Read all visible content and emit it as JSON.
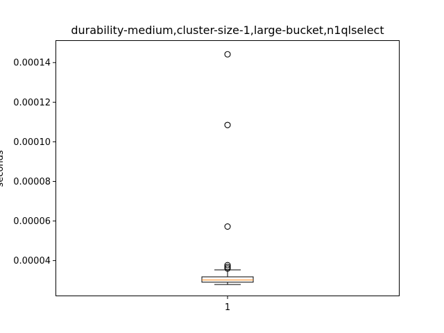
{
  "chart_data": {
    "type": "box",
    "title": "durability-medium,cluster-size-1,large-bucket,n1qlselect",
    "xlabel": "",
    "ylabel": "seconds",
    "categories": [
      "1"
    ],
    "ylim": [
      2.2e-05,
      0.0001513
    ],
    "yticks": [
      4e-05,
      6e-05,
      8e-05,
      0.0001,
      0.00012,
      0.00014
    ],
    "ytick_labels": [
      "0.00004",
      "0.00006",
      "0.00008",
      "0.00010",
      "0.00012",
      "0.00014"
    ],
    "grid": false,
    "boxes": [
      {
        "category": "1",
        "whisker_low": 2.79e-05,
        "q1": 2.91e-05,
        "median": 3.02e-05,
        "q3": 3.18e-05,
        "whisker_high": 3.53e-05,
        "outliers": [
          3.6e-05,
          3.68e-05,
          3.77e-05,
          5.72e-05,
          0.0001085,
          0.0001442
        ]
      }
    ],
    "colors": {
      "median": "#ff7f0e",
      "box": "#000000",
      "axes": "#000000"
    }
  }
}
